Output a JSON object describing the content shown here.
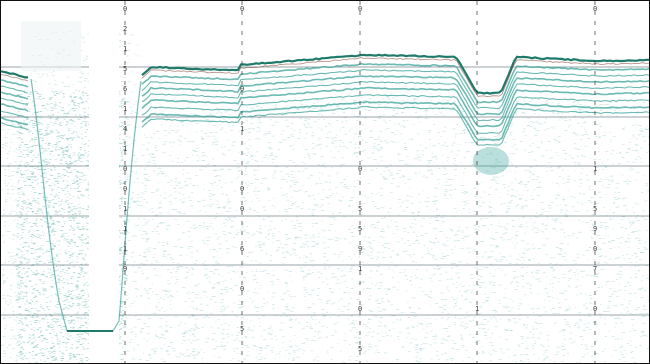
{
  "profile": {
    "colors": {
      "background": "#ffffff",
      "frame": "#111111",
      "gridline": "#9aa3a8",
      "seabed": "#1f7a6b",
      "strata": "#3aa39a",
      "noise": "#6fb7b8",
      "dark_reflector": "#7a3b2a"
    },
    "marker_labels": [
      [
        "0",
        "2",
        "1",
        "5",
        "6",
        "1",
        "4",
        "1",
        "0",
        "0",
        "1",
        "1",
        "1",
        "9"
      ],
      [
        "0",
        "",
        "",
        "",
        "0",
        "",
        "1",
        "",
        "",
        "0",
        "0",
        "",
        "6",
        "",
        "0",
        "",
        "5"
      ],
      [
        "0",
        "",
        "",
        "",
        "",
        "",
        "",
        "",
        "0",
        "",
        "5",
        "5",
        "9",
        "1",
        "",
        "0",
        "",
        "5"
      ],
      [
        "",
        "",
        "",
        "",
        "",
        "",
        "",
        "",
        "",
        "",
        "",
        "",
        "",
        "",
        "",
        "1"
      ],
      [
        "0",
        "",
        "",
        "",
        "",
        "",
        "",
        "",
        "1",
        "",
        "5",
        "9",
        "0",
        "7",
        "",
        "0"
      ]
    ]
  }
}
